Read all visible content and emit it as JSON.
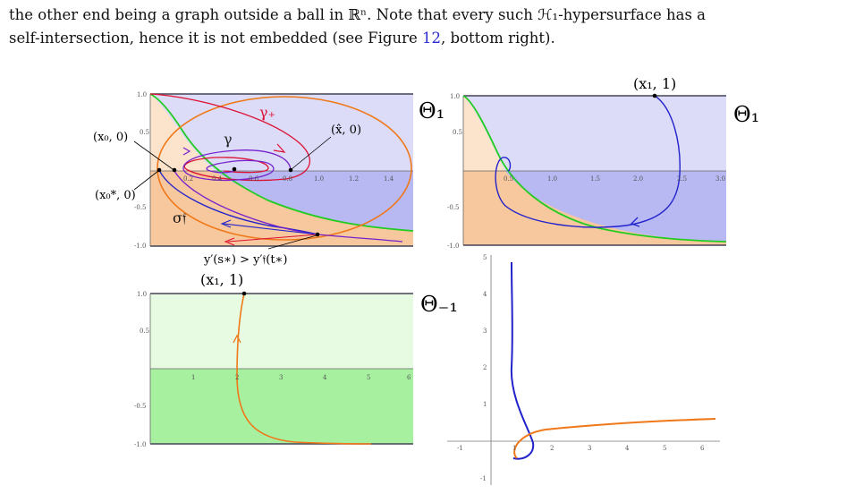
{
  "paragraph": {
    "line1": "the other end being a graph outside a ball in ℝⁿ.  Note that every such ℋ₁-hypersurface has a",
    "line2_pre": "self-intersection, hence it is not embedded (see Figure ",
    "figure_ref": "12",
    "line2_post": ", bottom right)."
  },
  "figure": {
    "panel_tl": {
      "region_label": "Θ₁",
      "curve_labels": {
        "gamma_plus": "γ₊",
        "gamma": "γ",
        "sigma": "σ𝔣"
      },
      "point_labels": {
        "x0": "(x₀, 0)",
        "x0star": "(x₀*, 0)",
        "xhat": "(x̂, 0)",
        "ineq": "y′(s∗) > y′𝔣(t∗)"
      },
      "x_ticks": [
        "0.2",
        "0.4",
        "0.6",
        "0.8",
        "1.0",
        "1.2",
        "1.4"
      ],
      "y_ticks": [
        "1.0",
        "0.5",
        "-0.5",
        "-1.0"
      ]
    },
    "panel_tr": {
      "region_label": "Θ₁",
      "point_label": "(x₁, 1)",
      "x_ticks": [
        "0.5",
        "1.0",
        "1.5",
        "2.0",
        "2.5",
        "3.0"
      ],
      "y_ticks": [
        "1.0",
        "0.5",
        "-0.5",
        "-1.0"
      ]
    },
    "panel_bl": {
      "region_label": "Θ₋₁",
      "point_label": "(x₁, 1)",
      "x_ticks": [
        "1",
        "2",
        "3",
        "4",
        "5",
        "6"
      ],
      "y_ticks": [
        "1.0",
        "0.5",
        "-0.5",
        "-1.0"
      ]
    },
    "panel_br": {
      "x_ticks": [
        "-1",
        "1",
        "2",
        "3",
        "4",
        "5",
        "6"
      ],
      "y_ticks": [
        "5",
        "4",
        "3",
        "2",
        "1",
        "-1"
      ]
    },
    "colors": {
      "blue_region": "#dcdcf8",
      "blue_region_dark": "#b8b8f2",
      "orange_region": "#fbe3cc",
      "orange_region_dark": "#f7c79d",
      "green_region": "#e6fbe2",
      "green_region_dark": "#a6f0a0",
      "green_curve": "#22cc22",
      "blue_curve": "#2222cc",
      "orange_curve": "#f07818",
      "red_curve": "#dd1133",
      "purple_curve": "#7722cc"
    }
  }
}
